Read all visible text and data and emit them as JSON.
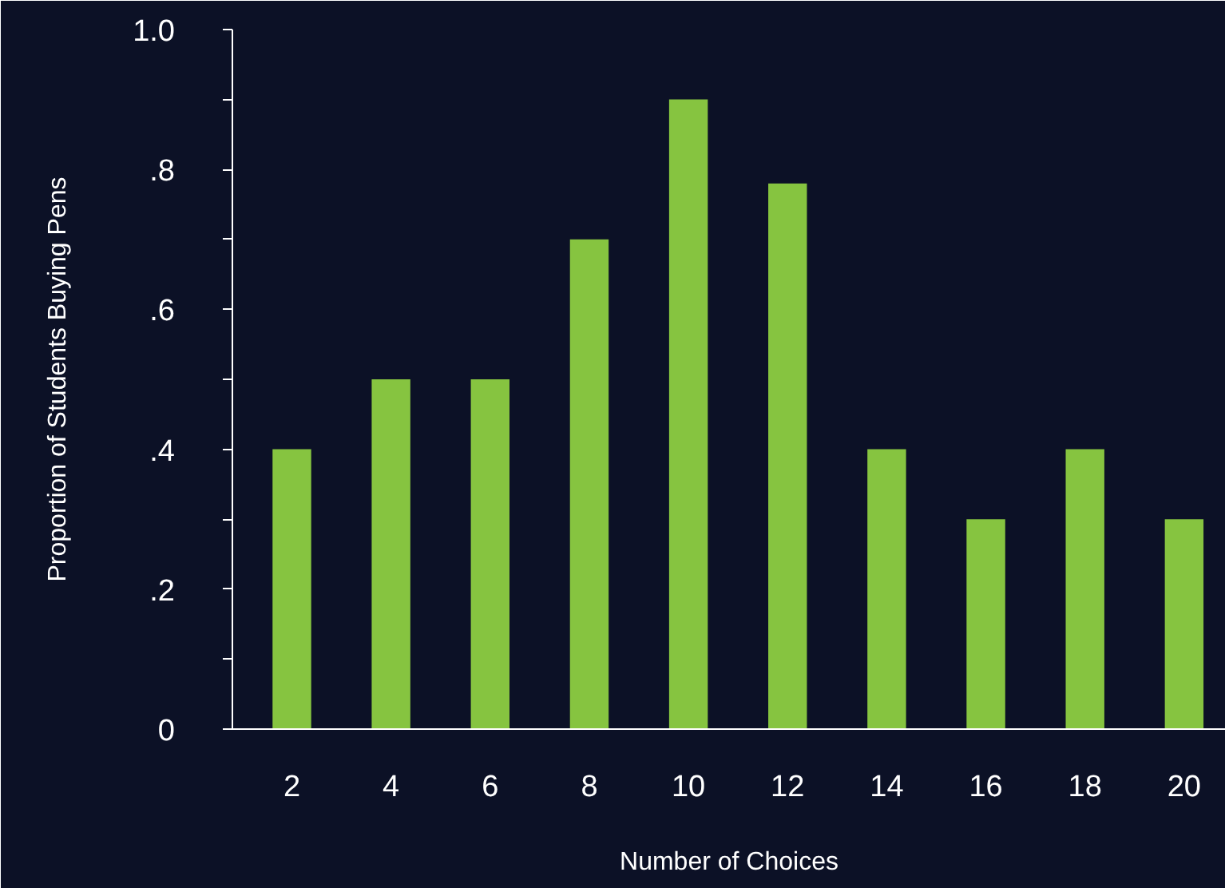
{
  "chart_data": {
    "type": "bar",
    "xlabel": "Number of Choices",
    "ylabel": "Proportion of Students Buying Pens",
    "categories": [
      "2",
      "4",
      "6",
      "8",
      "10",
      "12",
      "14",
      "16",
      "18",
      "20"
    ],
    "values": [
      0.4,
      0.5,
      0.5,
      0.7,
      0.9,
      0.78,
      0.4,
      0.3,
      0.4,
      0.3
    ],
    "color": "#86c440",
    "ylim": [
      0,
      1.0
    ],
    "yticks": [
      {
        "value": 0,
        "label": "0"
      },
      {
        "value": 0.1,
        "label": null
      },
      {
        "value": 0.2,
        "label": ".2"
      },
      {
        "value": 0.3,
        "label": null
      },
      {
        "value": 0.4,
        "label": ".4"
      },
      {
        "value": 0.5,
        "label": null
      },
      {
        "value": 0.6,
        "label": ".6"
      },
      {
        "value": 0.7,
        "label": null
      },
      {
        "value": 0.8,
        "label": ".8"
      },
      {
        "value": 0.9,
        "label": null
      },
      {
        "value": 1.0,
        "label": "1.0"
      }
    ],
    "grid": false
  }
}
